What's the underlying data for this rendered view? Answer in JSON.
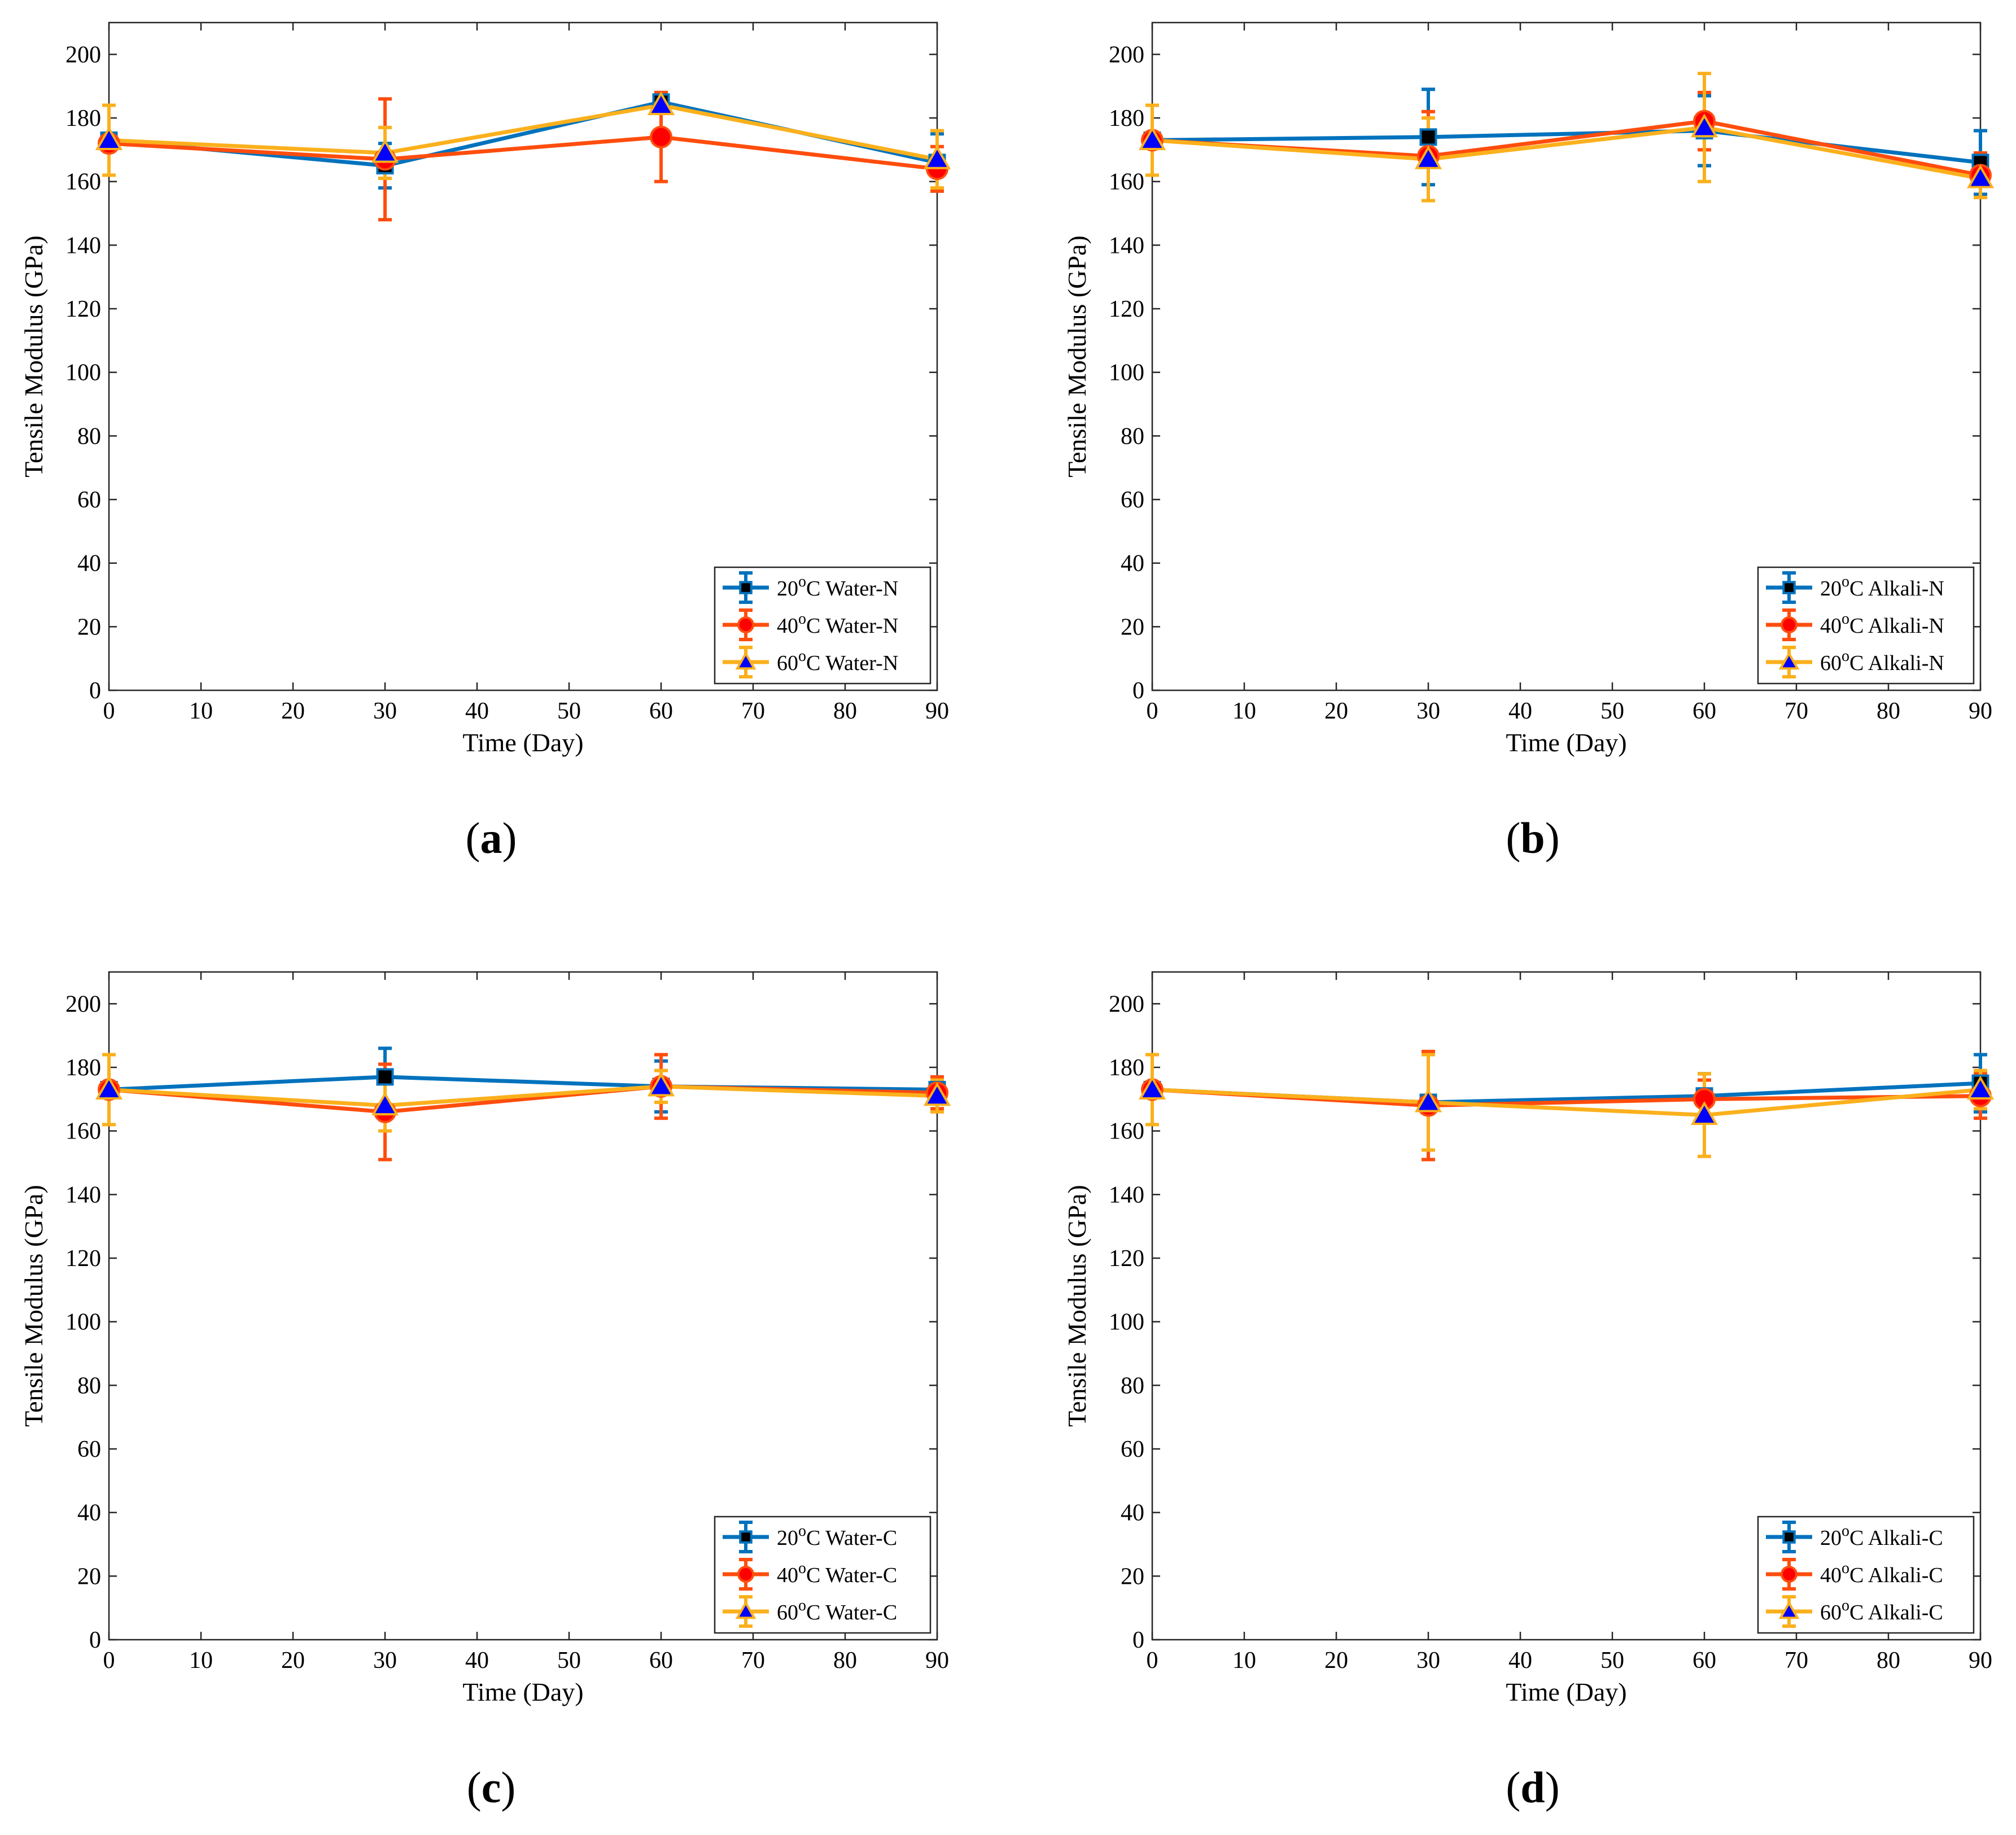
{
  "chart_data": [
    {
      "type": "line",
      "panel_label": "a",
      "xlabel": "Time (Day)",
      "ylabel": "Tensile Modulus (GPa)",
      "xlim": [
        0,
        90
      ],
      "ylim": [
        0,
        210
      ],
      "xticks": [
        0,
        10,
        20,
        30,
        40,
        50,
        60,
        70,
        80,
        90
      ],
      "yticks": [
        0,
        20,
        40,
        60,
        80,
        100,
        120,
        140,
        160,
        180,
        200
      ],
      "legend_position": "bottom-right",
      "x": [
        0,
        30,
        60,
        90
      ],
      "series": [
        {
          "name": "20",
          "unit": "°C",
          "suffix": " Water-N",
          "color": "#0072BD",
          "marker": "square",
          "values": [
            173,
            165,
            185,
            166
          ],
          "errors": [
            0,
            7,
            3,
            9
          ]
        },
        {
          "name": "40",
          "unit": "°C",
          "suffix": " Water-N",
          "color": "#FF4D0D",
          "marker": "circle",
          "values": [
            172,
            167,
            174,
            164
          ],
          "errors": [
            0,
            19,
            14,
            7
          ]
        },
        {
          "name": "60",
          "unit": "°C",
          "suffix": " Water-N",
          "color": "#FBB01C",
          "marker": "triangle",
          "values": [
            173,
            169,
            184,
            167
          ],
          "errors": [
            11,
            8,
            2,
            9
          ]
        }
      ]
    },
    {
      "type": "line",
      "panel_label": "b",
      "xlabel": "Time (Day)",
      "ylabel": "Tensile Modulus (GPa)",
      "xlim": [
        0,
        90
      ],
      "ylim": [
        0,
        210
      ],
      "xticks": [
        0,
        10,
        20,
        30,
        40,
        50,
        60,
        70,
        80,
        90
      ],
      "yticks": [
        0,
        20,
        40,
        60,
        80,
        100,
        120,
        140,
        160,
        180,
        200
      ],
      "legend_position": "bottom-right",
      "x": [
        0,
        30,
        60,
        90
      ],
      "series": [
        {
          "name": "20",
          "unit": "°C",
          "suffix": " Alkali-N",
          "color": "#0072BD",
          "marker": "square",
          "values": [
            173,
            174,
            176,
            166
          ],
          "errors": [
            0,
            15,
            11,
            10
          ]
        },
        {
          "name": "40",
          "unit": "°C",
          "suffix": " Alkali-N",
          "color": "#FF4D0D",
          "marker": "circle",
          "values": [
            173,
            168,
            179,
            162
          ],
          "errors": [
            0,
            14,
            9,
            7
          ]
        },
        {
          "name": "60",
          "unit": "°C",
          "suffix": " Alkali-N",
          "color": "#FBB01C",
          "marker": "triangle",
          "values": [
            173,
            167,
            177,
            161
          ],
          "errors": [
            11,
            13,
            17,
            6
          ]
        }
      ]
    },
    {
      "type": "line",
      "panel_label": "c",
      "xlabel": "Time (Day)",
      "ylabel": "Tensile Modulus (GPa)",
      "xlim": [
        0,
        90
      ],
      "ylim": [
        0,
        210
      ],
      "xticks": [
        0,
        10,
        20,
        30,
        40,
        50,
        60,
        70,
        80,
        90
      ],
      "yticks": [
        0,
        20,
        40,
        60,
        80,
        100,
        120,
        140,
        160,
        180,
        200
      ],
      "legend_position": "bottom-right",
      "x": [
        0,
        30,
        60,
        90
      ],
      "series": [
        {
          "name": "20",
          "unit": "°C",
          "suffix": " Water-C",
          "color": "#0072BD",
          "marker": "square",
          "values": [
            173,
            177,
            174,
            173
          ],
          "errors": [
            0,
            9,
            8,
            4
          ]
        },
        {
          "name": "40",
          "unit": "°C",
          "suffix": " Water-C",
          "color": "#FF4D0D",
          "marker": "circle",
          "values": [
            173,
            166,
            174,
            172
          ],
          "errors": [
            0,
            15,
            10,
            5
          ]
        },
        {
          "name": "60",
          "unit": "°C",
          "suffix": " Water-C",
          "color": "#FBB01C",
          "marker": "triangle",
          "values": [
            173,
            168,
            174,
            171
          ],
          "errors": [
            11,
            8,
            5,
            5
          ]
        }
      ]
    },
    {
      "type": "line",
      "panel_label": "d",
      "xlabel": "Time (Day)",
      "ylabel": "Tensile Modulus (GPa)",
      "xlim": [
        0,
        90
      ],
      "ylim": [
        0,
        210
      ],
      "xticks": [
        0,
        10,
        20,
        30,
        40,
        50,
        60,
        70,
        80,
        90
      ],
      "yticks": [
        0,
        20,
        40,
        60,
        80,
        100,
        120,
        140,
        160,
        180,
        200
      ],
      "legend_position": "bottom-right",
      "x": [
        0,
        30,
        60,
        90
      ],
      "series": [
        {
          "name": "20",
          "unit": "°C",
          "suffix": " Alkali-C",
          "color": "#0072BD",
          "marker": "square",
          "values": [
            173,
            169,
            171,
            175
          ],
          "errors": [
            0,
            15,
            7,
            9
          ]
        },
        {
          "name": "40",
          "unit": "°C",
          "suffix": " Alkali-C",
          "color": "#FF4D0D",
          "marker": "circle",
          "values": [
            173,
            168,
            170,
            171
          ],
          "errors": [
            0,
            17,
            6,
            7
          ]
        },
        {
          "name": "60",
          "unit": "°C",
          "suffix": " Alkali-C",
          "color": "#FBB01C",
          "marker": "triangle",
          "values": [
            173,
            169,
            165,
            173
          ],
          "errors": [
            11,
            15,
            13,
            6
          ]
        }
      ]
    }
  ]
}
